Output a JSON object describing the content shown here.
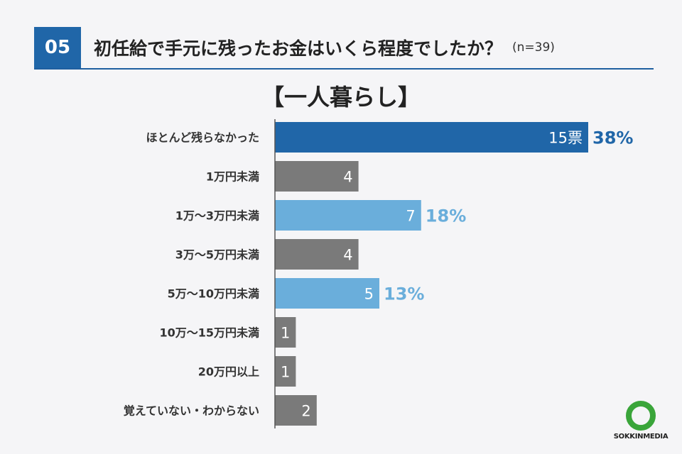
{
  "header": {
    "number": "05",
    "title": "初任給で手元に残ったお金はいくら程度でしたか？",
    "n_label": "(n=39)"
  },
  "chart_data": {
    "type": "bar",
    "orientation": "horizontal",
    "title": "【一人暮らし】",
    "categories": [
      "ほとんど残らなかった",
      "1万円未満",
      "1万～3万円未満",
      "3万～5万円未満",
      "5万～10万円未満",
      "10万～15万円未満",
      "20万円以上",
      "覚えていない・わからない"
    ],
    "values": [
      15,
      4,
      7,
      4,
      5,
      1,
      1,
      2
    ],
    "value_labels": [
      "15票",
      "4",
      "7",
      "4",
      "5",
      "1",
      "1",
      "2"
    ],
    "percent_labels": [
      "38%",
      "",
      "18%",
      "",
      "13%",
      "",
      "",
      ""
    ],
    "bar_colors": [
      "#2066a8",
      "#7a7a7a",
      "#6aaedb",
      "#7a7a7a",
      "#6aaedb",
      "#7a7a7a",
      "#7a7a7a",
      "#7a7a7a"
    ],
    "percent_colors": [
      "#2066a8",
      "",
      "#6aaedb",
      "",
      "#6aaedb",
      "",
      "",
      ""
    ],
    "xlim": [
      0,
      15
    ]
  },
  "logo": {
    "text": "SOKKINMEDIA",
    "ring_color": "#3aa53a"
  }
}
